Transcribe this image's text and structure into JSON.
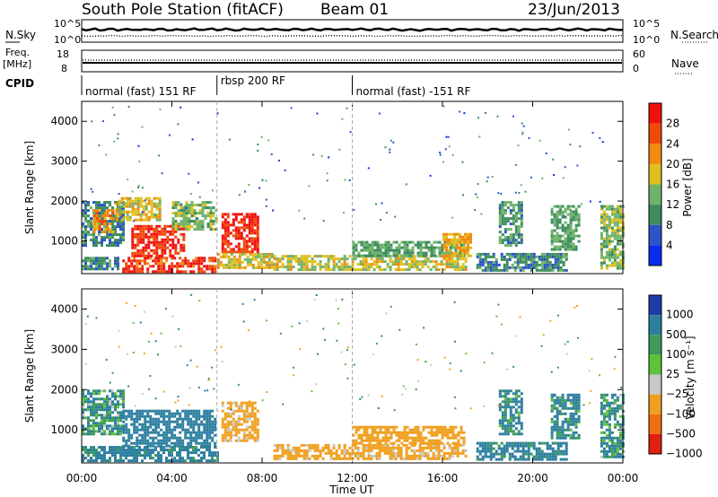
{
  "header": {
    "station": "South Pole Station (fitACF)",
    "beam": "Beam 01",
    "date": "23/Jun/2013"
  },
  "top_panels": {
    "left_labels": [
      "N.Sky",
      "Freq.",
      "[MHz]",
      "CPID"
    ],
    "right_labels": [
      "N.Search",
      "Nave"
    ],
    "left_ticks_noise": [
      "10^5",
      "10^0"
    ],
    "right_ticks_noise": [
      "10^5",
      "10^0"
    ],
    "left_ticks_freq": [
      "18",
      "8"
    ],
    "right_ticks_nave": [
      "60",
      "0"
    ],
    "cpid_segments": [
      {
        "label": "normal (fast) 151 RF",
        "start_h": 0,
        "end_h": 6.0
      },
      {
        "label": "rbsp 200 RF",
        "start_h": 6.0,
        "end_h": 12.0
      },
      {
        "label": "normal (fast) -151 RF",
        "start_h": 12.0,
        "end_h": 24.0
      }
    ]
  },
  "axes": {
    "ylabel": "Slant Range [km]",
    "xlabel": "Time UT",
    "x_ticks": [
      "00:00",
      "04:00",
      "08:00",
      "12:00",
      "16:00",
      "20:00",
      "00:00"
    ],
    "y_ticks": [
      "1000",
      "2000",
      "3000",
      "4000"
    ]
  },
  "colorbars": {
    "power": {
      "label": "Power [dB]",
      "ticks": [
        "4",
        "8",
        "12",
        "16",
        "20",
        "24",
        "28"
      ],
      "colors": [
        "#0a2cf0",
        "#2a54c8",
        "#3d8c5e",
        "#6fb36a",
        "#e0c020",
        "#f08a10",
        "#f04a0a",
        "#f01010"
      ]
    },
    "velocity": {
      "label": "Velocity [m s⁻¹]",
      "ticks": [
        "1000",
        "500",
        "100",
        "25",
        "−25",
        "−100",
        "−500",
        "−1000"
      ],
      "colors": [
        "#1e3ca8",
        "#2d7fa0",
        "#3d9a5a",
        "#5ec23a",
        "#c8c8c8",
        "#f0a020",
        "#f07010",
        "#e02010"
      ]
    }
  },
  "chart_data": [
    {
      "type": "heatmap",
      "title": "South Pole Station (fitACF) Beam 01",
      "xlabel": "Time UT",
      "ylabel": "Slant Range [km]",
      "xlim_hours": [
        0,
        24
      ],
      "ylim_km": [
        180,
        4500
      ],
      "variable": "Power [dB]",
      "colorbar_range": [
        0,
        30
      ],
      "regions": [
        {
          "t0": 0.0,
          "t1": 1.6,
          "r0": 300,
          "r1": 600,
          "level": 10
        },
        {
          "t0": 0.0,
          "t1": 1.8,
          "r0": 900,
          "r1": 2000,
          "level": 9
        },
        {
          "t0": 0.5,
          "t1": 1.4,
          "r0": 1200,
          "r1": 1800,
          "level": 22
        },
        {
          "t0": 1.8,
          "t1": 5.9,
          "r0": 250,
          "r1": 600,
          "level": 27
        },
        {
          "t0": 2.2,
          "t1": 4.5,
          "r0": 600,
          "r1": 1400,
          "level": 28
        },
        {
          "t0": 1.5,
          "t1": 3.5,
          "r0": 1500,
          "r1": 2100,
          "level": 18
        },
        {
          "t0": 4.0,
          "t1": 6.0,
          "r0": 1300,
          "r1": 2000,
          "level": 14
        },
        {
          "t0": 6.2,
          "t1": 7.8,
          "r0": 700,
          "r1": 1700,
          "level": 28
        },
        {
          "t0": 6.0,
          "t1": 8.5,
          "r0": 300,
          "r1": 700,
          "level": 18
        },
        {
          "t0": 8.5,
          "t1": 17.0,
          "r0": 250,
          "r1": 650,
          "level": 17
        },
        {
          "t0": 12.0,
          "t1": 17.0,
          "r0": 650,
          "r1": 1000,
          "level": 12
        },
        {
          "t0": 16.0,
          "t1": 17.2,
          "r0": 600,
          "r1": 1200,
          "level": 20
        },
        {
          "t0": 17.5,
          "t1": 21.5,
          "r0": 250,
          "r1": 700,
          "level": 10
        },
        {
          "t0": 18.5,
          "t1": 19.5,
          "r0": 900,
          "r1": 2000,
          "level": 11
        },
        {
          "t0": 20.8,
          "t1": 22.0,
          "r0": 800,
          "r1": 1900,
          "level": 12
        },
        {
          "t0": 23.0,
          "t1": 24.0,
          "r0": 300,
          "r1": 1900,
          "level": 14
        }
      ]
    },
    {
      "type": "heatmap",
      "title": "South Pole Station (fitACF) Beam 01",
      "xlabel": "Time UT",
      "ylabel": "Slant Range [km]",
      "xlim_hours": [
        0,
        24
      ],
      "ylim_km": [
        180,
        4500
      ],
      "variable": "Velocity [m s⁻¹]",
      "colorbar_range": [
        -1000,
        1000
      ],
      "regions": [
        {
          "t0": 0.0,
          "t1": 1.8,
          "r0": 900,
          "r1": 2000,
          "level": 100
        },
        {
          "t0": 0.0,
          "t1": 6.0,
          "r0": 250,
          "r1": 600,
          "level": 200
        },
        {
          "t0": 1.8,
          "t1": 5.9,
          "r0": 600,
          "r1": 1500,
          "level": 300
        },
        {
          "t0": 6.2,
          "t1": 7.8,
          "r0": 700,
          "r1": 1700,
          "level": -200
        },
        {
          "t0": 8.5,
          "t1": 17.0,
          "r0": 250,
          "r1": 650,
          "level": -200
        },
        {
          "t0": 12.0,
          "t1": 17.0,
          "r0": 650,
          "r1": 1100,
          "level": -300
        },
        {
          "t0": 17.5,
          "t1": 21.5,
          "r0": 250,
          "r1": 700,
          "level": 200
        },
        {
          "t0": 18.5,
          "t1": 19.5,
          "r0": 900,
          "r1": 2000,
          "level": 150
        },
        {
          "t0": 20.8,
          "t1": 22.0,
          "r0": 800,
          "r1": 1900,
          "level": 150
        },
        {
          "t0": 23.0,
          "t1": 24.0,
          "r0": 300,
          "r1": 1900,
          "level": 120
        }
      ]
    }
  ]
}
